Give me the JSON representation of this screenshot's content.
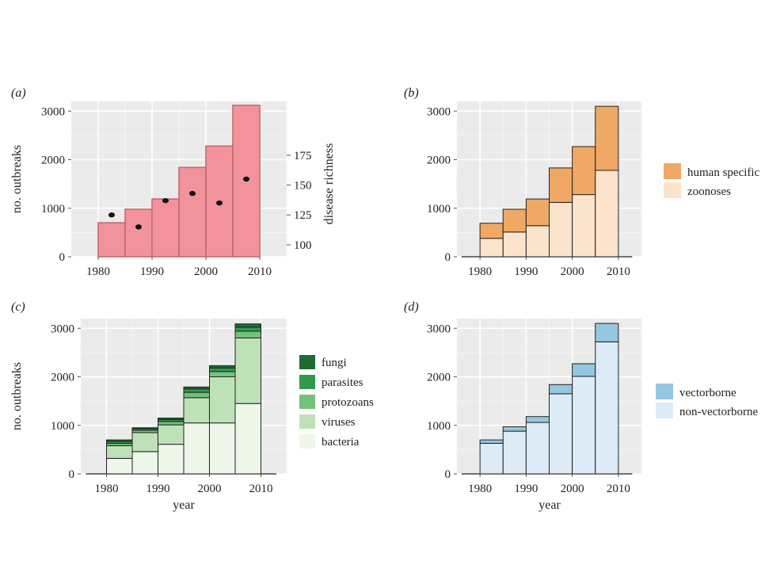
{
  "colors": {
    "panel_bg": "#ebebeb",
    "grid_major": "#ffffff",
    "grid_minor": "#f4f4f4",
    "bar_outline": "#222222",
    "a_bar": "#f2929b",
    "a_bar_outline": "#c26a72",
    "a_points": "#111111",
    "b_human": "#f0a865",
    "b_zoonoses": "#fce3cb",
    "c_fungi": "#1f6b35",
    "c_parasites": "#2f9a4e",
    "c_protozoans": "#73c17a",
    "c_viruses": "#bfe1b8",
    "c_bacteria": "#eef7ea",
    "d_vector": "#96c7e0",
    "d_nonvector": "#ddebf6"
  },
  "chart_data": [
    {
      "panel": "(a)",
      "type": "bar",
      "x_bins": [
        [
          1980,
          1985
        ],
        [
          1985,
          1990
        ],
        [
          1990,
          1995
        ],
        [
          1995,
          2000
        ],
        [
          2000,
          2005
        ],
        [
          2005,
          2010
        ]
      ],
      "values": [
        700,
        980,
        1190,
        1840,
        2280,
        3120
      ],
      "xlim": [
        1975,
        2015
      ],
      "ylim": [
        0,
        3200
      ],
      "xticks": [
        1980,
        1990,
        2000,
        2010
      ],
      "yticks": [
        0,
        1000,
        2000,
        3000
      ],
      "ylabel": "no. outbreaks",
      "secondary_axis": {
        "label": "disease richness",
        "ticks": [
          100,
          125,
          150,
          175
        ],
        "range": [
          90,
          220
        ],
        "points": [
          {
            "x": 1982.5,
            "y": 125
          },
          {
            "x": 1987.5,
            "y": 115
          },
          {
            "x": 1992.5,
            "y": 137
          },
          {
            "x": 1997.5,
            "y": 143
          },
          {
            "x": 2002.5,
            "y": 135
          },
          {
            "x": 2007.5,
            "y": 155
          }
        ]
      }
    },
    {
      "panel": "(b)",
      "type": "bar",
      "stacked": true,
      "x_bins": [
        [
          1980,
          1985
        ],
        [
          1985,
          1990
        ],
        [
          1990,
          1995
        ],
        [
          1995,
          2000
        ],
        [
          2000,
          2005
        ],
        [
          2005,
          2010
        ]
      ],
      "series": [
        {
          "name": "zoonoses",
          "values": [
            380,
            510,
            640,
            1120,
            1280,
            1780
          ],
          "color": "b_zoonoses"
        },
        {
          "name": "human specific",
          "values": [
            310,
            470,
            550,
            710,
            990,
            1320
          ],
          "color": "b_human"
        }
      ],
      "legend_order": [
        "human specific",
        "zoonoses"
      ],
      "legend_position": "right",
      "xlim": [
        1975,
        2015
      ],
      "ylim": [
        0,
        3200
      ],
      "xticks": [
        1980,
        1990,
        2000,
        2010
      ],
      "yticks": [
        0,
        1000,
        2000,
        3000
      ]
    },
    {
      "panel": "(c)",
      "type": "bar",
      "stacked": true,
      "x_bins": [
        [
          1980,
          1985
        ],
        [
          1985,
          1990
        ],
        [
          1990,
          1995
        ],
        [
          1995,
          2000
        ],
        [
          2000,
          2005
        ],
        [
          2005,
          2010
        ]
      ],
      "series": [
        {
          "name": "bacteria",
          "values": [
            320,
            460,
            610,
            1050,
            1050,
            1450
          ],
          "color": "c_bacteria"
        },
        {
          "name": "viruses",
          "values": [
            260,
            390,
            400,
            520,
            950,
            1350
          ],
          "color": "c_viruses"
        },
        {
          "name": "protozoans",
          "values": [
            50,
            50,
            70,
            110,
            110,
            140
          ],
          "color": "c_protozoans"
        },
        {
          "name": "parasites",
          "values": [
            40,
            30,
            40,
            70,
            70,
            80
          ],
          "color": "c_parasites"
        },
        {
          "name": "fungi",
          "values": [
            30,
            20,
            30,
            40,
            50,
            70
          ],
          "color": "c_fungi"
        }
      ],
      "legend_order": [
        "fungi",
        "parasites",
        "protozoans",
        "viruses",
        "bacteria"
      ],
      "legend_position": "right",
      "xlim": [
        1975,
        2015
      ],
      "ylim": [
        0,
        3200
      ],
      "xticks": [
        1980,
        1990,
        2000,
        2010
      ],
      "yticks": [
        0,
        1000,
        2000,
        3000
      ],
      "xlabel": "year",
      "ylabel": "no. outbreaks"
    },
    {
      "panel": "(d)",
      "type": "bar",
      "stacked": true,
      "x_bins": [
        [
          1980,
          1985
        ],
        [
          1985,
          1990
        ],
        [
          1990,
          1995
        ],
        [
          1995,
          2000
        ],
        [
          2000,
          2005
        ],
        [
          2005,
          2010
        ]
      ],
      "series": [
        {
          "name": "non-vectorborne",
          "values": [
            630,
            880,
            1060,
            1650,
            2010,
            2720
          ],
          "color": "d_nonvector"
        },
        {
          "name": "vectorborne",
          "values": [
            70,
            90,
            120,
            190,
            260,
            380
          ],
          "color": "d_vector"
        }
      ],
      "legend_order": [
        "vectorborne",
        "non-vectorborne"
      ],
      "legend_position": "right",
      "xlim": [
        1975,
        2015
      ],
      "ylim": [
        0,
        3200
      ],
      "xticks": [
        1980,
        1990,
        2000,
        2010
      ],
      "yticks": [
        0,
        1000,
        2000,
        3000
      ],
      "xlabel": "year"
    }
  ]
}
